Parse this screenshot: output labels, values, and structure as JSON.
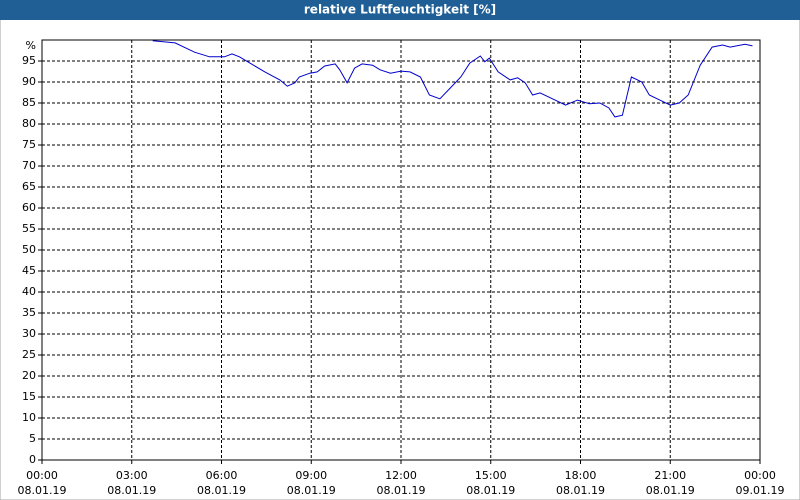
{
  "chart_data": {
    "type": "line",
    "title": "relative Luftfeuchtigkeit [%]",
    "y_unit": "%",
    "ylim": [
      0,
      100
    ],
    "yticks": [
      0,
      5,
      10,
      15,
      20,
      25,
      30,
      35,
      40,
      45,
      50,
      55,
      60,
      65,
      70,
      75,
      80,
      85,
      90,
      95
    ],
    "xlim": [
      0,
      24
    ],
    "xticks": [
      {
        "value": 0,
        "label": "00:00"
      },
      {
        "value": 3,
        "label": "03:00"
      },
      {
        "value": 6,
        "label": "06:00"
      },
      {
        "value": 9,
        "label": "09:00"
      },
      {
        "value": 12,
        "label": "12:00"
      },
      {
        "value": 15,
        "label": "15:00"
      },
      {
        "value": 18,
        "label": "18:00"
      },
      {
        "value": 21,
        "label": "21:00"
      },
      {
        "value": 24,
        "label": "00:00"
      }
    ],
    "xtick_dates": [
      "08.01.19",
      "08.01.19",
      "08.01.19",
      "08.01.19",
      "08.01.19",
      "08.01.19",
      "08.01.19",
      "08.01.19",
      "09.01.19"
    ],
    "grid": true,
    "series": [
      {
        "color": "#0000cc",
        "x": [
          3.7,
          4.45,
          5.1,
          5.6,
          6.1,
          6.35,
          6.6,
          6.95,
          7.45,
          7.95,
          8.2,
          8.45,
          8.6,
          8.95,
          9.2,
          9.45,
          9.8,
          9.95,
          10.2,
          10.45,
          10.7,
          11.05,
          11.3,
          11.65,
          12,
          12.3,
          12.65,
          12.95,
          13.3,
          13.65,
          14,
          14.3,
          14.65,
          14.8,
          14.95,
          15.25,
          15.65,
          15.9,
          16.15,
          16.4,
          16.65,
          17.15,
          17.5,
          17.9,
          18.3,
          18.65,
          18.95,
          19.15,
          19.4,
          19.7,
          20.05,
          20.3,
          20.65,
          21,
          21.3,
          21.6,
          22,
          22.4,
          22.75,
          23,
          23.5,
          23.75
        ],
        "values": [
          99.8,
          99.3,
          97.1,
          96,
          96,
          96.7,
          96,
          94.5,
          92.4,
          90.5,
          89,
          89.8,
          91.2,
          92.1,
          92.4,
          93.8,
          94.3,
          92.9,
          89.8,
          93.3,
          94.3,
          94,
          92.9,
          92.1,
          92.6,
          92.4,
          91.2,
          86.9,
          86,
          88.6,
          91.2,
          94.5,
          96.2,
          94.8,
          95.7,
          92.4,
          90.5,
          91,
          89.8,
          86.9,
          87.4,
          85.7,
          84.5,
          85.7,
          84.8,
          85,
          83.8,
          81.7,
          82.1,
          91.2,
          90,
          86.9,
          85.7,
          84.5,
          85,
          86.9,
          94,
          98.3,
          98.8,
          98.3,
          99,
          98.6
        ]
      }
    ]
  }
}
